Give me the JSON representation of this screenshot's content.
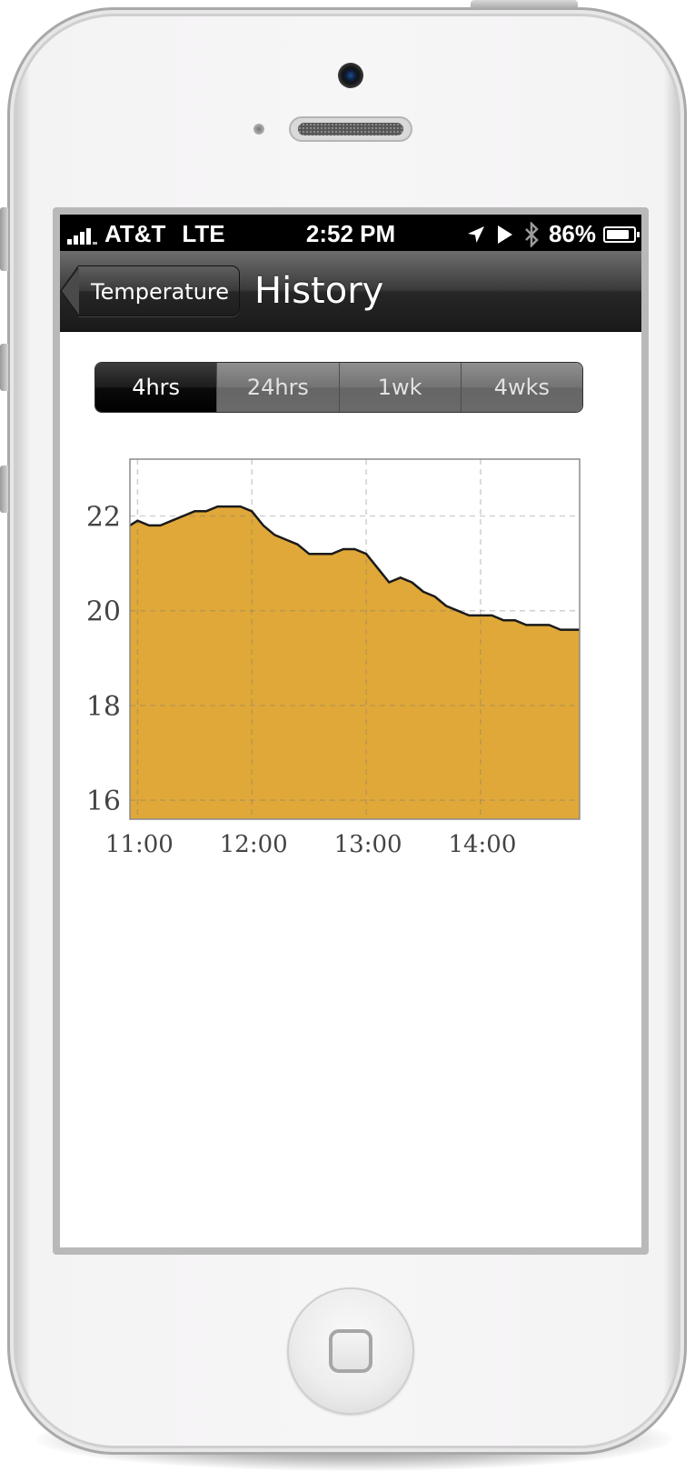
{
  "status_bar": {
    "carrier": "AT&T",
    "network": "LTE",
    "time": "2:52 PM",
    "battery": "86%",
    "battery_level": 0.86
  },
  "nav": {
    "back_label": "Temperature",
    "title": "History"
  },
  "range_tabs": {
    "items": [
      "4hrs",
      "24hrs",
      "1wk",
      "4wks"
    ],
    "selected": "4hrs"
  },
  "colors": {
    "fill": "#E0A838",
    "line": "#1a1a1a",
    "grid": "#c8c8c8"
  },
  "chart_data": {
    "type": "area",
    "title": "",
    "xlabel": "",
    "ylabel": "",
    "x_ticks": [
      "11:00",
      "12:00",
      "13:00",
      "14:00"
    ],
    "y_ticks": [
      16,
      18,
      20,
      22
    ],
    "xlim": [
      "10:56",
      "14:52"
    ],
    "ylim": [
      15.6,
      23.2
    ],
    "grid": true,
    "legend": "none",
    "series": [
      {
        "x": [
          "10:56",
          "11:00",
          "11:06",
          "11:12",
          "11:18",
          "11:24",
          "11:30",
          "11:36",
          "11:42",
          "11:48",
          "11:54",
          "12:00",
          "12:06",
          "12:12",
          "12:18",
          "12:24",
          "12:30",
          "12:36",
          "12:42",
          "12:48",
          "12:54",
          "13:00",
          "13:06",
          "13:12",
          "13:18",
          "13:24",
          "13:30",
          "13:36",
          "13:42",
          "13:48",
          "13:54",
          "14:00",
          "14:06",
          "14:12",
          "14:18",
          "14:24",
          "14:30",
          "14:36",
          "14:42",
          "14:48",
          "14:52"
        ],
        "values": [
          21.8,
          21.9,
          21.8,
          21.8,
          21.9,
          22.0,
          22.1,
          22.1,
          22.2,
          22.2,
          22.2,
          22.1,
          21.8,
          21.6,
          21.5,
          21.4,
          21.2,
          21.2,
          21.2,
          21.3,
          21.3,
          21.2,
          20.9,
          20.6,
          20.7,
          20.6,
          20.4,
          20.3,
          20.1,
          20.0,
          19.9,
          19.9,
          19.9,
          19.8,
          19.8,
          19.7,
          19.7,
          19.7,
          19.6,
          19.6,
          19.6
        ]
      }
    ]
  }
}
